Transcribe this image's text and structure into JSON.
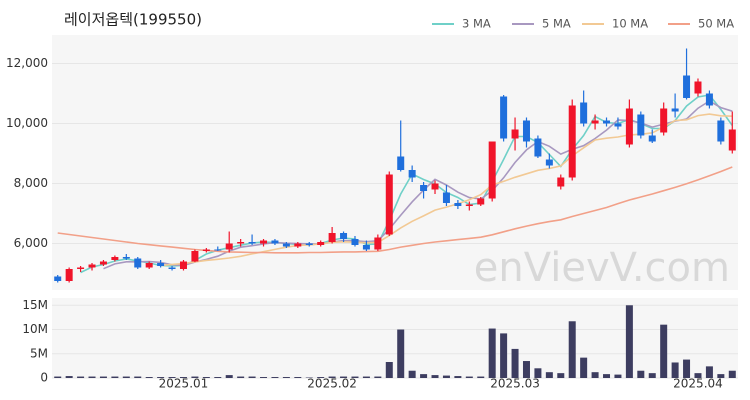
{
  "chart_data": {
    "type": "candlestick",
    "title": "레이저옵텍(199550)",
    "watermark": "enVievV.com",
    "categories": [
      null,
      null,
      null,
      null,
      null,
      null,
      null,
      null,
      null,
      null,
      null,
      "2025.01",
      null,
      null,
      null,
      null,
      null,
      null,
      null,
      null,
      null,
      null,
      null,
      null,
      "2025.02",
      null,
      null,
      null,
      null,
      null,
      null,
      null,
      null,
      null,
      null,
      null,
      null,
      null,
      null,
      null,
      "2025.03",
      null,
      null,
      null,
      null,
      null,
      null,
      null,
      null,
      null,
      null,
      null,
      null,
      null,
      null,
      null,
      "2025.04",
      null,
      null,
      null
    ],
    "open": [
      4900,
      4750,
      5150,
      5200,
      5300,
      5450,
      5550,
      5500,
      5200,
      5350,
      5200,
      5150,
      5400,
      5750,
      5800,
      5800,
      6000,
      6050,
      6000,
      6100,
      6000,
      5900,
      6000,
      5950,
      6050,
      6350,
      6150,
      5950,
      5800,
      6300,
      8900,
      8450,
      7950,
      7800,
      7700,
      7350,
      7250,
      7300,
      7500,
      10900,
      9500,
      10100,
      9500,
      8800,
      7900,
      8200,
      10700,
      10000,
      10100,
      10000,
      9300,
      10300,
      9600,
      9700,
      10500,
      11600,
      11000,
      11000,
      10100,
      9100
    ],
    "high": [
      4950,
      5200,
      5250,
      5350,
      5450,
      5600,
      5650,
      5550,
      5400,
      5450,
      5250,
      5450,
      5800,
      5850,
      5900,
      6400,
      6150,
      6300,
      6150,
      6150,
      6050,
      6050,
      6050,
      6100,
      6550,
      6400,
      6250,
      6100,
      6300,
      8400,
      10100,
      8600,
      8050,
      8100,
      7950,
      7450,
      7400,
      7550,
      9400,
      10950,
      10200,
      10200,
      9600,
      9000,
      8300,
      10800,
      11100,
      10300,
      10200,
      10200,
      10800,
      10400,
      9800,
      10700,
      11000,
      12500,
      11500,
      11100,
      10200,
      10400
    ],
    "low": [
      4700,
      4700,
      5050,
      5100,
      5250,
      5400,
      5450,
      5150,
      5150,
      5200,
      5100,
      5100,
      5380,
      5700,
      5750,
      5700,
      5900,
      5950,
      5900,
      5950,
      5850,
      5850,
      5900,
      5900,
      6000,
      6050,
      5900,
      5750,
      5750,
      6250,
      8400,
      8050,
      7500,
      7650,
      7250,
      7150,
      7100,
      7250,
      7400,
      9400,
      9100,
      9200,
      8850,
      8500,
      7800,
      8100,
      9900,
      9800,
      9900,
      9800,
      9200,
      9500,
      9350,
      9600,
      10200,
      10800,
      10900,
      10500,
      9300,
      9000
    ],
    "close": [
      4750,
      5150,
      5200,
      5300,
      5400,
      5550,
      5500,
      5200,
      5350,
      5250,
      5150,
      5400,
      5750,
      5800,
      5780,
      6000,
      6050,
      6000,
      6100,
      6000,
      5900,
      6000,
      5950,
      6050,
      6350,
      6150,
      5950,
      5800,
      6200,
      8300,
      8450,
      8200,
      7750,
      8000,
      7350,
      7250,
      7300,
      7500,
      9400,
      9500,
      9800,
      9400,
      8900,
      8600,
      8200,
      10600,
      10000,
      10100,
      10000,
      9900,
      10500,
      9600,
      9400,
      10500,
      10400,
      10850,
      11400,
      10600,
      9400,
      9800
    ],
    "up_color": "#f0142a",
    "down_color": "#1f6fdc",
    "ylim": [
      4450,
      12950
    ],
    "yticks": [
      {
        "value": 6000,
        "label": "6,000"
      },
      {
        "value": 8000,
        "label": "8,000"
      },
      {
        "value": 10000,
        "label": "10,000"
      },
      {
        "value": 12000,
        "label": "12,000"
      }
    ],
    "series": [
      {
        "name": "3 MA",
        "color": "#6fd0c8",
        "values": [
          null,
          null,
          5033,
          5217,
          5300,
          5417,
          5483,
          5417,
          5350,
          5267,
          5250,
          5267,
          5433,
          5650,
          5777,
          5860,
          5943,
          6017,
          6050,
          6033,
          6000,
          5967,
          5950,
          6000,
          6117,
          6183,
          6150,
          5967,
          5983,
          6767,
          7650,
          8317,
          8133,
          7983,
          7700,
          7533,
          7300,
          7350,
          8067,
          8800,
          9567,
          9567,
          9367,
          8967,
          8567,
          9133,
          9600,
          10233,
          10033,
          10000,
          10133,
          10000,
          9833,
          9833,
          10100,
          10583,
          10883,
          10950,
          10467,
          9933
        ]
      },
      {
        "name": "5 MA",
        "color": "#a898c0",
        "values": [
          null,
          null,
          null,
          null,
          5160,
          5320,
          5390,
          5390,
          5400,
          5370,
          5290,
          5270,
          5380,
          5470,
          5576,
          5746,
          5876,
          5926,
          5986,
          6030,
          6010,
          6000,
          5990,
          5980,
          6050,
          6100,
          6090,
          6060,
          6090,
          6480,
          6940,
          7390,
          7780,
          8140,
          7950,
          7710,
          7530,
          7480,
          7760,
          8190,
          8700,
          9120,
          9400,
          9240,
          8980,
          9140,
          9260,
          9500,
          9780,
          10120,
          10100,
          10020,
          9880,
          9980,
          10080,
          10150,
          10510,
          10750,
          10530,
          10410
        ]
      },
      {
        "name": "10 MA",
        "color": "#f2c994",
        "values": [
          null,
          null,
          null,
          null,
          null,
          null,
          null,
          null,
          null,
          5265,
          5305,
          5330,
          5385,
          5435,
          5473,
          5518,
          5573,
          5653,
          5728,
          5803,
          5878,
          5938,
          5958,
          5983,
          6040,
          6055,
          6045,
          6025,
          6035,
          6265,
          6520,
          6740,
          6920,
          7115,
          7215,
          7325,
          7460,
          7630,
          7950,
          8070,
          8205,
          8325,
          8440,
          8500,
          8585,
          8920,
          9190,
          9450,
          9510,
          9550,
          9620,
          9640,
          9690,
          9880,
          10100,
          10125,
          10265,
          10315,
          10255,
          10245
        ]
      },
      {
        "name": "50 MA",
        "color": "#f2a088",
        "values": [
          6350,
          6300,
          6250,
          6200,
          6150,
          6100,
          6050,
          6000,
          5960,
          5920,
          5880,
          5840,
          5800,
          5770,
          5740,
          5720,
          5710,
          5700,
          5700,
          5690,
          5690,
          5690,
          5700,
          5700,
          5710,
          5720,
          5720,
          5730,
          5740,
          5800,
          5880,
          5940,
          6000,
          6050,
          6090,
          6130,
          6170,
          6210,
          6290,
          6390,
          6490,
          6580,
          6660,
          6730,
          6790,
          6900,
          7000,
          7100,
          7200,
          7330,
          7450,
          7550,
          7650,
          7760,
          7870,
          7990,
          8120,
          8260,
          8400,
          8550
        ]
      }
    ],
    "volume": {
      "color": "#3d3d60",
      "values": [
        300000,
        400000,
        300000,
        300000,
        300000,
        300000,
        300000,
        300000,
        200000,
        200000,
        200000,
        200000,
        300000,
        200000,
        200000,
        600000,
        300000,
        300000,
        200000,
        200000,
        200000,
        200000,
        100000,
        200000,
        300000,
        300000,
        300000,
        300000,
        300000,
        3300000,
        10000000,
        1500000,
        800000,
        600000,
        500000,
        400000,
        300000,
        300000,
        10200000,
        9200000,
        6000000,
        3500000,
        2000000,
        1200000,
        1000000,
        11700000,
        4200000,
        1200000,
        800000,
        700000,
        15000000,
        1500000,
        1000000,
        11000000,
        3200000,
        3800000,
        1000000,
        2400000,
        800000,
        1500000
      ],
      "ylim": [
        0,
        16500000
      ],
      "yticks": [
        0,
        {
          "value": 5000000,
          "label": "5M"
        },
        {
          "value": 10000000,
          "label": "10M"
        },
        {
          "value": 15000000,
          "label": "15M"
        }
      ]
    }
  }
}
